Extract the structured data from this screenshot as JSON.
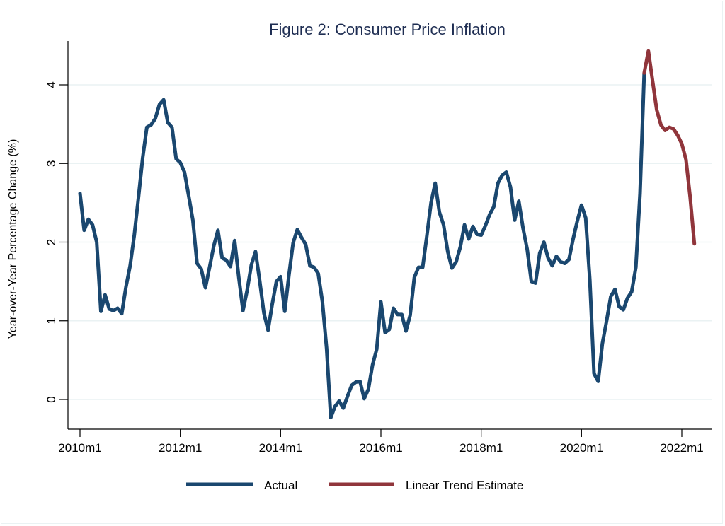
{
  "chart_data": {
    "type": "line",
    "title": "Figure 2: Consumer Price Inflation",
    "xlabel": "",
    "ylabel": "Year-over-Year Percentage Change (%)",
    "ylim": [
      -0.4,
      4.55
    ],
    "yticks": [
      0,
      1,
      2,
      3,
      4
    ],
    "xrange_months": [
      "2010m1",
      "2022m4"
    ],
    "xticks": [
      "2010m1",
      "2012m1",
      "2014m1",
      "2016m1",
      "2018m1",
      "2020m1",
      "2022m1"
    ],
    "grid": true,
    "legend_position": "bottom",
    "colors": {
      "actual": "#1a476f",
      "trend": "#90353b",
      "grid": "#eaf2f3",
      "title": "#1e2d52"
    },
    "series": [
      {
        "name": "Actual",
        "start": "2010m1",
        "values": [
          2.62,
          2.15,
          2.29,
          2.22,
          2.0,
          1.12,
          1.33,
          1.15,
          1.13,
          1.16,
          1.09,
          1.43,
          1.7,
          2.09,
          2.57,
          3.07,
          3.46,
          3.49,
          3.57,
          3.75,
          3.81,
          3.52,
          3.46,
          3.06,
          3.01,
          2.89,
          2.59,
          2.28,
          1.73,
          1.66,
          1.42,
          1.68,
          1.95,
          2.15,
          1.8,
          1.77,
          1.69,
          2.02,
          1.55,
          1.13,
          1.39,
          1.71,
          1.88,
          1.51,
          1.1,
          0.88,
          1.21,
          1.5,
          1.56,
          1.12,
          1.58,
          1.99,
          2.16,
          2.06,
          1.97,
          1.7,
          1.68,
          1.6,
          1.24,
          0.65,
          -0.23,
          -0.09,
          -0.02,
          -0.11,
          0.04,
          0.18,
          0.22,
          0.23,
          0.01,
          0.13,
          0.44,
          0.64,
          1.24,
          0.85,
          0.89,
          1.16,
          1.08,
          1.08,
          0.87,
          1.07,
          1.55,
          1.68,
          1.68,
          2.08,
          2.5,
          2.75,
          2.38,
          2.22,
          1.88,
          1.67,
          1.75,
          1.94,
          2.22,
          2.04,
          2.2,
          2.1,
          2.09,
          2.21,
          2.35,
          2.45,
          2.75,
          2.85,
          2.89,
          2.7,
          2.28,
          2.52,
          2.18,
          1.91,
          1.5,
          1.48,
          1.86,
          2.0,
          1.8,
          1.7,
          1.82,
          1.75,
          1.73,
          1.78,
          2.04,
          2.27,
          2.47,
          2.31,
          1.52,
          0.33,
          0.23,
          0.71,
          1.0,
          1.31,
          1.4,
          1.18,
          1.14,
          1.29,
          1.37,
          1.68,
          2.62,
          4.15
        ]
      },
      {
        "name": "Linear Trend Estimate",
        "start": "2021m4",
        "values": [
          4.15,
          4.43,
          4.05,
          3.68,
          3.49,
          3.42,
          3.46,
          3.44,
          3.36,
          3.25,
          3.05,
          2.57,
          1.98
        ]
      }
    ]
  }
}
